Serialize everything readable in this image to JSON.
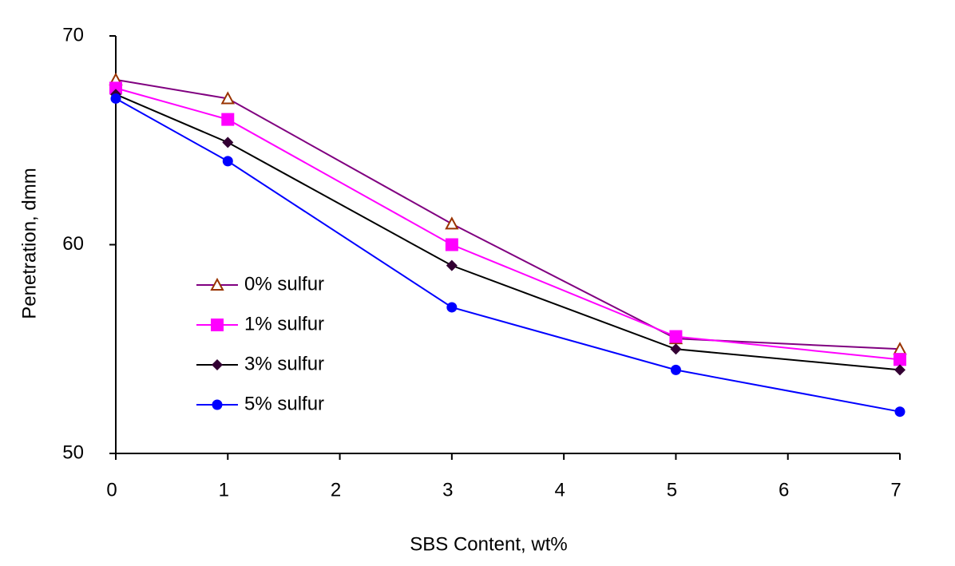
{
  "chart_data": {
    "type": "line",
    "x_label": "SBS Content, wt%",
    "y_label": "Penetration, dmm",
    "x": [
      0,
      1,
      3,
      5,
      7
    ],
    "xlim": [
      0,
      7
    ],
    "xticks": [
      0,
      1,
      2,
      3,
      4,
      5,
      6,
      7
    ],
    "ylim": [
      50,
      70
    ],
    "yticks": [
      50,
      60,
      70
    ],
    "grid": false,
    "legend": "left",
    "series": [
      {
        "name": "0% sulfur",
        "color": "#800080",
        "marker": "open-triangle",
        "marker_color": "#993300",
        "values": [
          67.9,
          67,
          61,
          55.5,
          55
        ]
      },
      {
        "name": "1% sulfur",
        "color": "#ff00ff",
        "marker": "square",
        "marker_color": "#ff00ff",
        "values": [
          67.5,
          66,
          60,
          55.6,
          54.5
        ]
      },
      {
        "name": "3% sulfur",
        "color": "#000000",
        "marker": "diamond",
        "marker_color": "#330033",
        "values": [
          67.2,
          64.9,
          59,
          55,
          54
        ]
      },
      {
        "name": "5% sulfur",
        "color": "#0000ff",
        "marker": "circle",
        "marker_color": "#0000ff",
        "values": [
          67,
          64,
          57,
          54,
          52
        ]
      }
    ]
  }
}
